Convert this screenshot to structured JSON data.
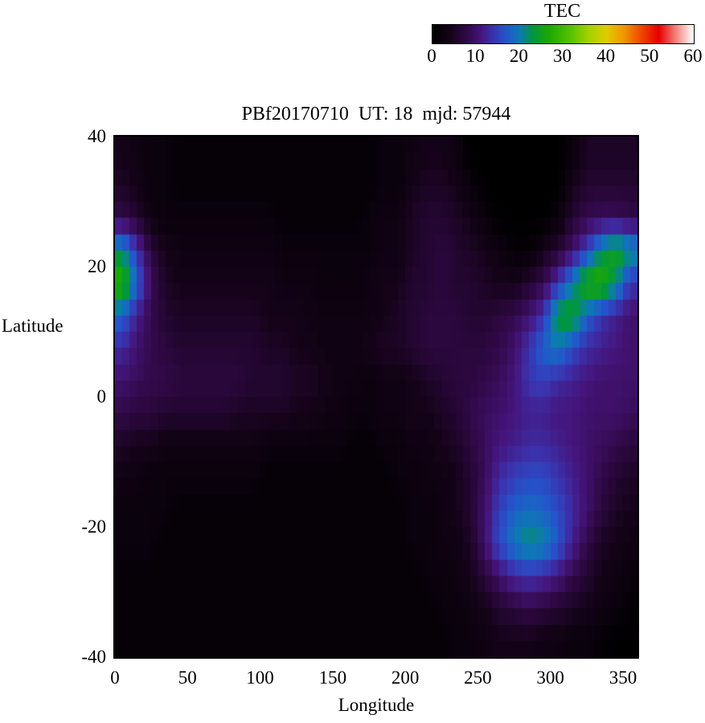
{
  "chart_data": {
    "type": "heatmap",
    "title": "PBf20170710  UT: 18  mjd: 57944",
    "xlabel": "Longitude",
    "ylabel": "Latitude",
    "xlim": [
      0,
      360
    ],
    "ylim": [
      -40,
      40
    ],
    "xticks": [
      0,
      50,
      100,
      150,
      200,
      250,
      300,
      350
    ],
    "yticks": [
      40,
      20,
      0,
      -20,
      -40
    ],
    "grid": "off",
    "colorbar": {
      "label": "TEC",
      "min": 0,
      "max": 60,
      "ticks": [
        0,
        10,
        20,
        30,
        40,
        50,
        60
      ],
      "position": "top-right",
      "stops": [
        [
          0,
          "#000000"
        ],
        [
          4,
          "#140318"
        ],
        [
          8,
          "#32094a"
        ],
        [
          11,
          "#45157c"
        ],
        [
          14,
          "#3a34b0"
        ],
        [
          17,
          "#2356cc"
        ],
        [
          20,
          "#0d7ab4"
        ],
        [
          23,
          "#009640"
        ],
        [
          27,
          "#1eaa00"
        ],
        [
          32,
          "#5ac300"
        ],
        [
          36,
          "#a6d200"
        ],
        [
          40,
          "#e0cc00"
        ],
        [
          44,
          "#f09600"
        ],
        [
          48,
          "#f04600"
        ],
        [
          52,
          "#e60000"
        ],
        [
          56,
          "#f4827c"
        ],
        [
          60,
          "#ffffff"
        ]
      ]
    },
    "grid_info": {
      "lon_start": 0,
      "lon_step": 10,
      "lat_start": 40,
      "lat_step": -5,
      "units": "TECU",
      "note": "TEC at cell centers; rows ordered from lat +40 (top) to lat -40 (bottom), columns lon 0 to 360"
    },
    "values": [
      [
        4,
        3,
        2,
        2,
        1,
        1,
        1,
        1,
        1,
        1,
        1,
        1,
        1,
        1,
        1,
        1,
        1,
        1,
        2,
        2,
        3,
        4,
        4,
        3,
        0,
        0,
        0,
        0,
        0,
        0,
        0,
        2,
        5,
        5,
        5,
        5
      ],
      [
        5,
        4,
        2,
        2,
        1,
        1,
        1,
        1,
        1,
        1,
        1,
        1,
        1,
        1,
        1,
        1,
        1,
        1,
        2,
        2,
        4,
        5,
        5,
        4,
        2,
        0,
        0,
        0,
        0,
        0,
        0,
        4,
        6,
        6,
        6,
        6
      ],
      [
        8,
        6,
        3,
        2,
        2,
        2,
        2,
        2,
        2,
        2,
        2,
        1,
        1,
        1,
        1,
        1,
        1,
        2,
        3,
        3,
        5,
        6,
        6,
        5,
        4,
        2,
        0,
        0,
        0,
        0,
        2,
        6,
        8,
        9,
        9,
        8
      ],
      [
        22,
        14,
        7,
        4,
        3,
        3,
        3,
        3,
        3,
        3,
        3,
        2,
        2,
        2,
        2,
        2,
        2,
        2,
        3,
        3,
        5,
        6,
        7,
        6,
        5,
        4,
        3,
        1,
        1,
        4,
        6,
        10,
        15,
        22,
        26,
        22
      ],
      [
        28,
        18,
        9,
        5,
        4,
        4,
        4,
        4,
        4,
        4,
        4,
        3,
        3,
        3,
        2,
        2,
        2,
        3,
        4,
        4,
        6,
        6,
        7,
        6,
        6,
        5,
        4,
        4,
        6,
        8,
        14,
        20,
        27,
        28,
        22,
        14
      ],
      [
        18,
        12,
        8,
        6,
        5,
        5,
        5,
        5,
        5,
        5,
        4,
        4,
        4,
        3,
        3,
        3,
        3,
        3,
        4,
        5,
        6,
        7,
        7,
        7,
        6,
        6,
        7,
        8,
        10,
        14,
        24,
        25,
        18,
        14,
        12,
        10
      ],
      [
        13,
        10,
        8,
        7,
        6,
        6,
        6,
        6,
        6,
        6,
        5,
        5,
        4,
        4,
        3,
        3,
        3,
        4,
        5,
        5,
        6,
        7,
        7,
        7,
        7,
        7,
        8,
        10,
        14,
        18,
        20,
        16,
        13,
        12,
        11,
        10
      ],
      [
        10,
        9,
        8,
        8,
        7,
        7,
        7,
        7,
        7,
        6,
        6,
        6,
        5,
        5,
        4,
        3,
        3,
        2,
        3,
        3,
        4,
        5,
        6,
        7,
        7,
        8,
        9,
        11,
        14,
        15,
        13,
        12,
        11,
        10,
        10,
        10
      ],
      [
        8,
        7,
        7,
        6,
        6,
        6,
        6,
        6,
        5,
        5,
        5,
        5,
        4,
        4,
        3,
        3,
        2,
        2,
        3,
        3,
        4,
        4,
        5,
        6,
        8,
        9,
        10,
        11,
        12,
        12,
        11,
        11,
        10,
        10,
        10,
        9
      ],
      [
        5,
        4,
        4,
        3,
        3,
        3,
        3,
        3,
        3,
        3,
        2,
        2,
        2,
        2,
        2,
        2,
        1,
        1,
        2,
        2,
        3,
        3,
        4,
        5,
        7,
        9,
        11,
        12,
        13,
        13,
        12,
        11,
        10,
        9,
        8,
        7
      ],
      [
        3,
        3,
        2,
        2,
        2,
        2,
        2,
        2,
        2,
        2,
        1,
        1,
        1,
        1,
        1,
        1,
        1,
        1,
        1,
        2,
        2,
        3,
        3,
        4,
        6,
        9,
        13,
        15,
        16,
        16,
        14,
        12,
        10,
        8,
        6,
        5
      ],
      [
        2,
        2,
        2,
        2,
        1,
        1,
        1,
        1,
        1,
        1,
        1,
        1,
        1,
        1,
        1,
        1,
        1,
        1,
        1,
        1,
        2,
        2,
        3,
        4,
        6,
        10,
        15,
        18,
        19,
        18,
        16,
        13,
        10,
        7,
        5,
        4
      ],
      [
        2,
        2,
        2,
        1,
        1,
        1,
        1,
        1,
        1,
        1,
        1,
        1,
        1,
        1,
        1,
        1,
        1,
        1,
        1,
        1,
        2,
        2,
        3,
        3,
        5,
        10,
        16,
        20,
        22,
        21,
        17,
        12,
        8,
        5,
        4,
        3
      ],
      [
        1,
        1,
        1,
        1,
        1,
        1,
        1,
        1,
        1,
        1,
        1,
        1,
        1,
        1,
        1,
        1,
        1,
        1,
        1,
        1,
        1,
        2,
        2,
        3,
        4,
        7,
        10,
        13,
        14,
        13,
        11,
        8,
        6,
        4,
        3,
        2
      ],
      [
        1,
        1,
        1,
        1,
        1,
        1,
        1,
        1,
        1,
        1,
        1,
        1,
        1,
        1,
        1,
        1,
        1,
        1,
        1,
        1,
        1,
        1,
        2,
        2,
        3,
        4,
        6,
        7,
        8,
        7,
        6,
        5,
        4,
        3,
        2,
        1
      ],
      [
        1,
        1,
        1,
        1,
        1,
        1,
        1,
        1,
        1,
        1,
        1,
        1,
        1,
        1,
        1,
        1,
        1,
        1,
        1,
        1,
        1,
        1,
        1,
        2,
        2,
        3,
        4,
        4,
        4,
        3,
        3,
        2,
        2,
        1,
        0,
        0
      ]
    ]
  }
}
